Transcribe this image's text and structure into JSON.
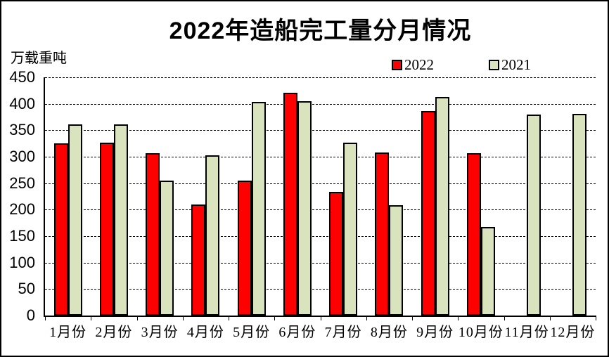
{
  "chart_data": {
    "type": "bar",
    "title": "2022年造船完工量分月情况",
    "ylabel_unit": "万载重吨",
    "categories": [
      "1月份",
      "2月份",
      "3月份",
      "4月份",
      "5月份",
      "6月份",
      "7月份",
      "8月份",
      "9月份",
      "10月份",
      "11月份",
      "12月份"
    ],
    "series": [
      {
        "name": "2022",
        "color": "#FF0000",
        "values": [
          325,
          326,
          307,
          210,
          255,
          421,
          234,
          308,
          386,
          307,
          null,
          null
        ]
      },
      {
        "name": "2021",
        "color": "#D9E3BD",
        "values": [
          361,
          361,
          255,
          302,
          404,
          405,
          326,
          208,
          413,
          167,
          380,
          381
        ]
      }
    ],
    "ylim": [
      0,
      450
    ],
    "ytick_step": 50,
    "ytick_labels": [
      "0",
      "50",
      "100",
      "150",
      "200",
      "250",
      "300",
      "350",
      "400",
      "450"
    ],
    "grid": "horizontal-dashed",
    "legend_position": "top-right",
    "colors": {
      "axis": "#000000",
      "background": "#FFFFFF",
      "bar_border": "#000000"
    }
  }
}
